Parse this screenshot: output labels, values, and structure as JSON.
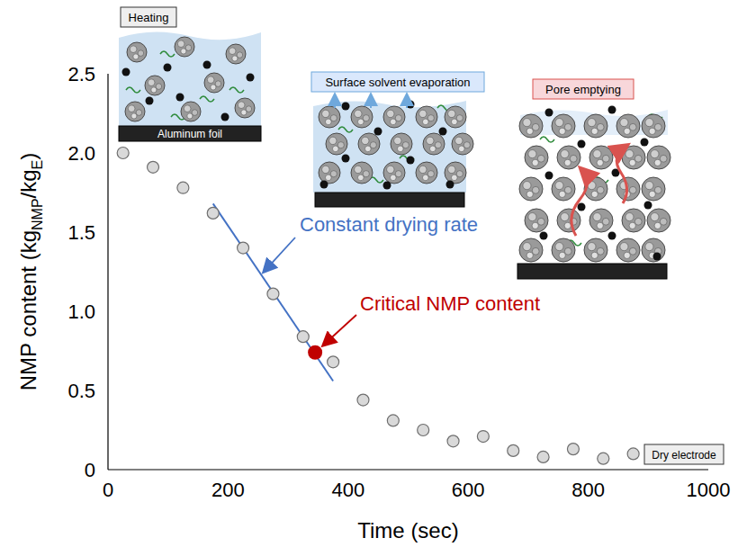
{
  "chart_data": {
    "type": "scatter",
    "x_label": "Time (sec)",
    "y_label": [
      {
        "text": "NMP content (kg"
      },
      {
        "text": "NMP",
        "sub": true
      },
      {
        "text": "/kg"
      },
      {
        "text": "E",
        "sub": true
      },
      {
        "text": ")"
      }
    ],
    "x": [
      25,
      75,
      125,
      175,
      225,
      275,
      325,
      375,
      425,
      475,
      525,
      575,
      625,
      675,
      725,
      775,
      825,
      875
    ],
    "values": [
      2.0,
      1.91,
      1.78,
      1.62,
      1.4,
      1.11,
      0.84,
      0.68,
      0.44,
      0.31,
      0.25,
      0.18,
      0.21,
      0.12,
      0.08,
      0.13,
      0.07,
      0.1
    ],
    "color": "#d9d9d9",
    "marker": "circle",
    "xlim": [
      0,
      1000
    ],
    "xticks": [
      0,
      200,
      400,
      600,
      800,
      1000
    ],
    "ylim": [
      0,
      2.5
    ],
    "yticks": [
      0,
      0.5,
      {
        "value": 1,
        "label": "1.0"
      },
      1.5,
      {
        "value": 2,
        "label": "2.0"
      },
      2.5
    ],
    "grid": false,
    "trend_line": {
      "label": "Constant drying rate",
      "x": [
        175,
        375
      ],
      "values": [
        1.68,
        0.56
      ],
      "color": "#4472c4"
    },
    "critical_point": {
      "label": "Critical NMP content",
      "x": 345,
      "value": 0.74,
      "color": "#c00000"
    },
    "insets": {
      "heating": "Heating",
      "substrate": "Aluminum foil",
      "evaporation": "Surface solvent evaporation",
      "pore": "Pore emptying",
      "dry": "Dry electrode"
    }
  }
}
